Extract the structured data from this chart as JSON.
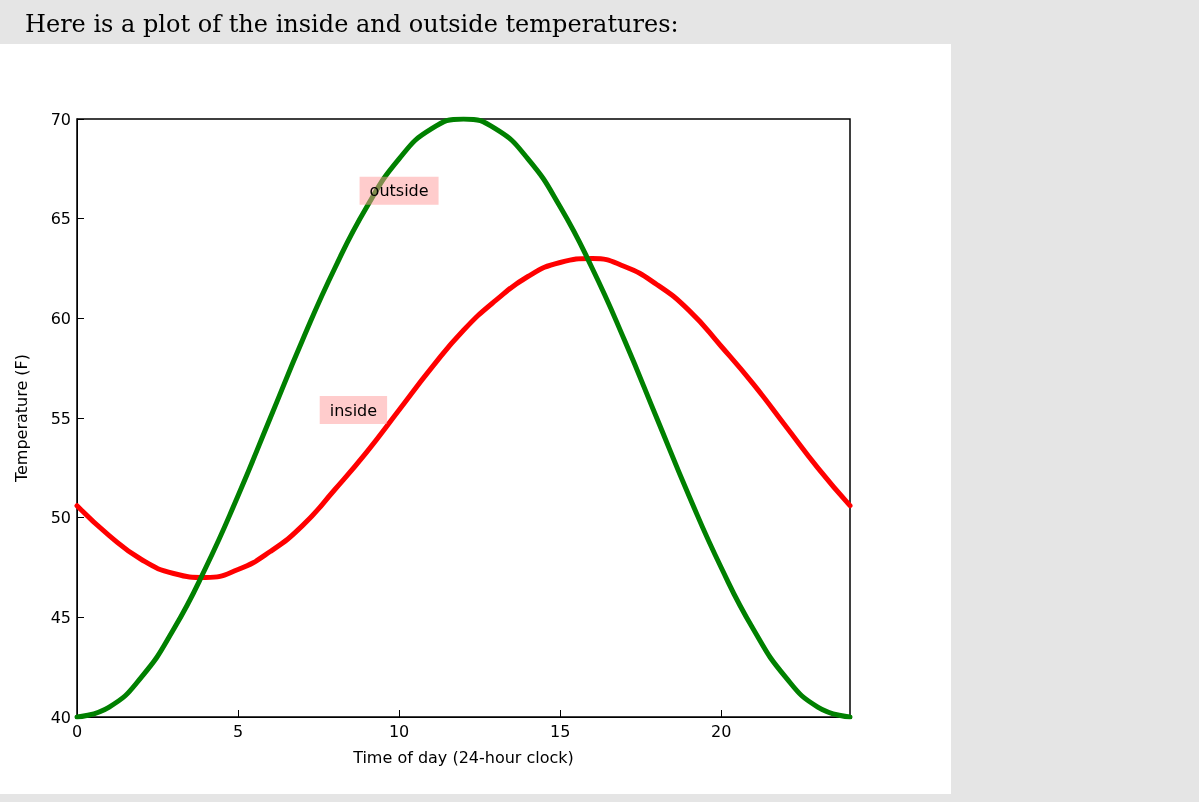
{
  "chart_data": {
    "type": "line",
    "title": "Here is a plot of the inside and outside temperatures:",
    "xlabel": "Time of day (24-hour clock)",
    "ylabel": "Temperature (F)",
    "x": [
      0,
      1,
      2,
      3,
      4,
      5,
      6,
      7,
      8,
      9,
      10,
      11,
      12,
      13,
      14,
      15,
      16,
      17,
      18,
      19,
      20,
      21,
      22,
      23,
      24
    ],
    "series": [
      {
        "name": "inside",
        "color": "#ff0000",
        "values": [
          50.6,
          49.1,
          47.9,
          47.2,
          47.0,
          47.4,
          48.3,
          49.6,
          51.4,
          53.3,
          55.4,
          57.5,
          59.4,
          60.9,
          62.1,
          62.8,
          63.0,
          62.6,
          61.7,
          60.4,
          58.6,
          56.7,
          54.6,
          52.5,
          50.6
        ]
      },
      {
        "name": "outside",
        "color": "#008000",
        "values": [
          40,
          40.5,
          42.0,
          44.4,
          47.5,
          51.1,
          55,
          58.9,
          62.5,
          65.6,
          68.0,
          69.5,
          70,
          69.5,
          68.0,
          65.6,
          62.5,
          58.9,
          55,
          51.1,
          47.5,
          44.4,
          42.0,
          40.5,
          40
        ]
      }
    ],
    "xlim": [
      0,
      24
    ],
    "xticks": [
      0,
      5,
      10,
      15,
      20
    ],
    "ylim": [
      40,
      70
    ],
    "yticks": [
      40,
      45,
      50,
      55,
      60,
      65,
      70
    ],
    "grid": false,
    "legend": false,
    "marker": "none",
    "line_style": "solid"
  }
}
